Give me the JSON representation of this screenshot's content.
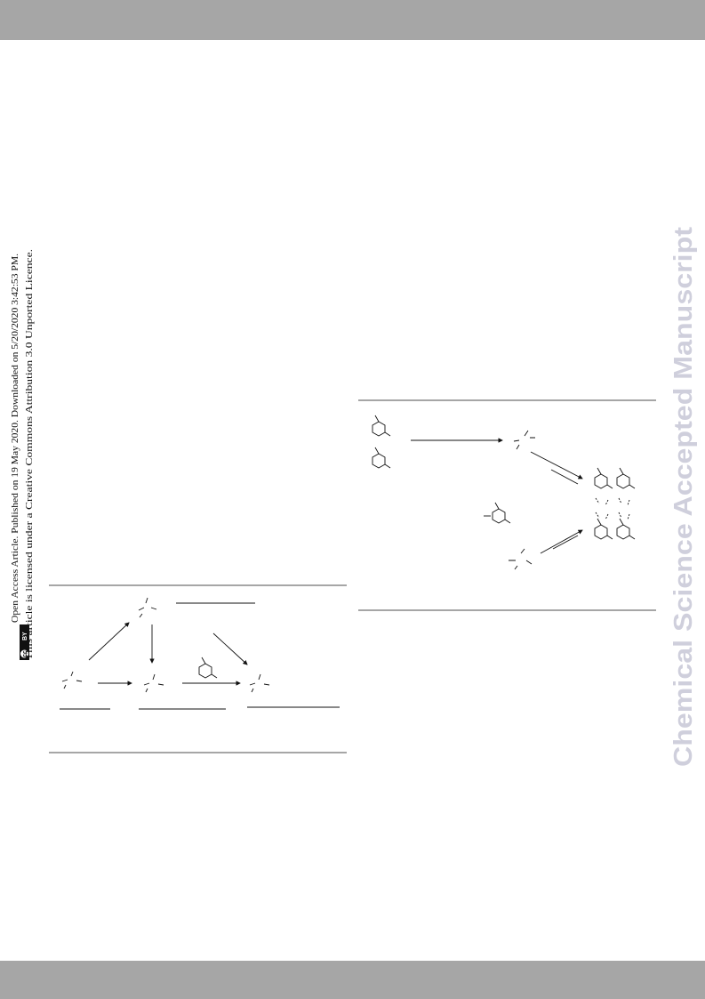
{
  "header": {
    "access_notice": "Open Access Article. Published on 19 May 2020. Downloaded on 5/20/2020 3:42:53 PM.",
    "licence_notice": "This article is licensed under a Creative Commons Attribution 3.0 Unported Licence.",
    "badge": {
      "left": "cc",
      "right": "BY"
    }
  },
  "watermark": "Chemical Science Accepted Manuscript"
}
